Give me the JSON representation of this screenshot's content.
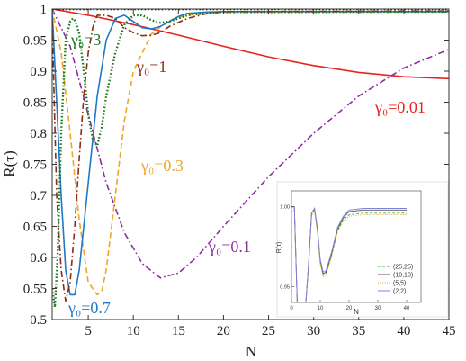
{
  "chart_data": {
    "type": "line",
    "xlabel": "N",
    "ylabel": "R(τ)",
    "xlim": [
      1,
      45
    ],
    "ylim": [
      0.5,
      1.0
    ],
    "x_ticks": [
      "5",
      "10",
      "15",
      "20",
      "25",
      "30",
      "35",
      "40",
      "45"
    ],
    "y_ticks": [
      "0.5",
      "0.55",
      "0.6",
      "0.65",
      "0.7",
      "0.75",
      "0.8",
      "0.85",
      "0.9",
      "0.95",
      "1"
    ],
    "grid": false,
    "series": [
      {
        "name": "γ₀=0.01",
        "color": "#e8221c",
        "style": "solid",
        "x": [
          1,
          5,
          10,
          15,
          20,
          25,
          30,
          35,
          40,
          45
        ],
        "y": [
          1.0,
          0.99,
          0.975,
          0.958,
          0.94,
          0.923,
          0.909,
          0.898,
          0.891,
          0.888
        ]
      },
      {
        "name": "γ₀=0.1",
        "color": "#8e2da0",
        "style": "dashdot",
        "x": [
          1,
          3,
          5,
          7,
          9,
          11,
          13,
          15,
          17,
          20,
          25,
          30,
          35,
          40,
          45
        ],
        "y": [
          1.0,
          0.94,
          0.83,
          0.72,
          0.64,
          0.59,
          0.567,
          0.575,
          0.6,
          0.65,
          0.73,
          0.8,
          0.86,
          0.905,
          0.935
        ]
      },
      {
        "name": "γ₀=0.3",
        "color": "#f0a524",
        "style": "dashed",
        "x": [
          1,
          2,
          3,
          4,
          5,
          6,
          6.5,
          7,
          8,
          9,
          10,
          12,
          14,
          16,
          18,
          20,
          22,
          45
        ],
        "y": [
          1.0,
          0.93,
          0.8,
          0.66,
          0.56,
          0.54,
          0.545,
          0.58,
          0.7,
          0.82,
          0.9,
          0.96,
          0.982,
          0.99,
          0.993,
          0.995,
          0.995,
          0.995
        ]
      },
      {
        "name": "γ₀=0.7",
        "color": "#1f78c8",
        "style": "solid",
        "x": [
          1,
          1.5,
          2,
          2.5,
          3,
          3.5,
          4,
          5,
          6,
          7,
          8,
          9,
          10,
          11,
          12,
          13,
          14,
          15,
          16,
          18,
          20,
          45
        ],
        "y": [
          1.0,
          0.85,
          0.7,
          0.58,
          0.54,
          0.54,
          0.58,
          0.72,
          0.86,
          0.95,
          0.985,
          0.99,
          0.98,
          0.97,
          0.968,
          0.972,
          0.98,
          0.988,
          0.993,
          0.995,
          0.996,
          0.996
        ]
      },
      {
        "name": "γ₀=1",
        "color": "#8b2d12",
        "style": "dashdot",
        "x": [
          1,
          1.5,
          2,
          2.5,
          3,
          3.5,
          4,
          4.5,
          5,
          5.5,
          6,
          7,
          8,
          9,
          10,
          11,
          12,
          13,
          14,
          16,
          18,
          20,
          45
        ],
        "y": [
          0.98,
          0.7,
          0.58,
          0.53,
          0.56,
          0.65,
          0.76,
          0.86,
          0.93,
          0.97,
          0.99,
          0.99,
          0.985,
          0.97,
          0.962,
          0.957,
          0.958,
          0.962,
          0.972,
          0.985,
          0.992,
          0.996,
          0.997
        ]
      },
      {
        "name": "γ₀=3",
        "color": "#1f7a1f",
        "style": "dotted",
        "x": [
          1,
          1.3,
          1.6,
          2,
          2.5,
          3,
          3.3,
          3.6,
          4,
          4.5,
          5,
          5.5,
          6,
          6.5,
          7,
          8,
          9,
          10,
          11,
          12,
          13,
          14,
          15,
          16,
          18,
          20,
          45
        ],
        "y": [
          0.55,
          0.52,
          0.6,
          0.8,
          0.95,
          0.98,
          0.985,
          0.98,
          0.96,
          0.9,
          0.83,
          0.79,
          0.78,
          0.81,
          0.86,
          0.93,
          0.975,
          0.99,
          0.99,
          0.982,
          0.978,
          0.98,
          0.985,
          0.99,
          0.993,
          0.995,
          0.996
        ]
      },
      {
        "name": "",
        "color": "#111111",
        "style": "dotted",
        "x": [
          1,
          45
        ],
        "y": [
          1.0,
          1.0
        ]
      }
    ],
    "annotations": [
      {
        "text": "γ₀=0.01",
        "color": "#e8221c"
      },
      {
        "text": "γ₀=0.1",
        "color": "#8e2da0"
      },
      {
        "text": "γ₀=0.3",
        "color": "#f0a524"
      },
      {
        "text": "γ₀=0.7",
        "color": "#1f78c8"
      },
      {
        "text": "γ₀=1",
        "color": "#8b2d12"
      },
      {
        "text": "γ₀=3",
        "color": "#1f7a1f"
      }
    ],
    "inset": {
      "type": "line",
      "xlabel": "N",
      "ylabel": "R(τ)",
      "xlim": [
        0,
        45
      ],
      "ylim": [
        0.94,
        1.01
      ],
      "x_ticks": [
        "0",
        "10",
        "20",
        "30",
        "40"
      ],
      "y_ticks": [
        "0.95",
        "1.00"
      ],
      "legend_placement": "bottom-right",
      "series": [
        {
          "name": "(25,25)",
          "color": "#3cb043",
          "style": "dashed",
          "x": [
            0,
            1,
            2,
            5,
            6,
            7,
            8,
            9,
            10,
            11,
            12,
            14,
            16,
            18,
            20,
            25,
            30,
            40
          ],
          "y": [
            1.0,
            1.0,
            0.94,
            0.94,
            0.965,
            0.995,
            0.998,
            0.985,
            0.965,
            0.957,
            0.958,
            0.97,
            0.985,
            0.992,
            0.995,
            0.996,
            0.996,
            0.996
          ]
        },
        {
          "name": "(10,10)",
          "color": "#555555",
          "style": "solid",
          "x": [
            0,
            1,
            2,
            5,
            6,
            7,
            8,
            9,
            10,
            11,
            12,
            14,
            16,
            18,
            20,
            25,
            30,
            40
          ],
          "y": [
            1.0,
            1.0,
            0.94,
            0.94,
            0.966,
            0.996,
            0.999,
            0.986,
            0.966,
            0.958,
            0.959,
            0.971,
            0.986,
            0.993,
            0.997,
            0.998,
            0.998,
            0.998
          ]
        },
        {
          "name": "(5,5)",
          "color": "#e0a020",
          "style": "dotted",
          "x": [
            0,
            1,
            2,
            5,
            6,
            7,
            8,
            9,
            10,
            11,
            12,
            14,
            16,
            18,
            20,
            25,
            30,
            40
          ],
          "y": [
            1.0,
            1.0,
            0.94,
            0.94,
            0.964,
            0.994,
            0.997,
            0.984,
            0.964,
            0.956,
            0.957,
            0.969,
            0.984,
            0.991,
            0.994,
            0.995,
            0.995,
            0.995
          ]
        },
        {
          "name": "(2,2)",
          "color": "#7f7fe0",
          "style": "solid",
          "x": [
            0,
            1,
            2,
            5,
            6,
            7,
            8,
            9,
            10,
            11,
            12,
            14,
            16,
            18,
            20,
            25,
            30,
            40
          ],
          "y": [
            1.0,
            1.0,
            0.94,
            0.94,
            0.965,
            0.996,
            0.999,
            0.987,
            0.967,
            0.959,
            0.96,
            0.972,
            0.987,
            0.994,
            0.998,
            0.999,
            0.999,
            0.999
          ]
        }
      ]
    }
  }
}
